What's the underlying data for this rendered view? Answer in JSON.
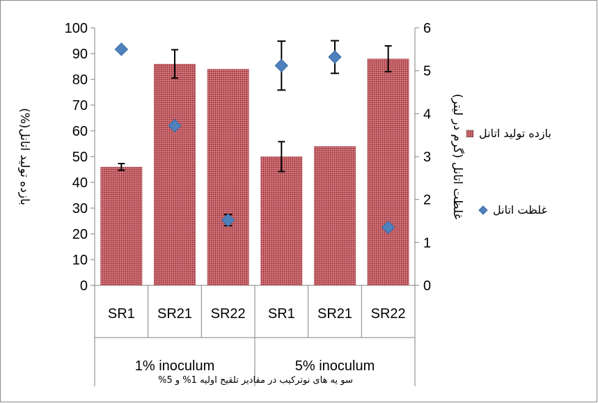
{
  "chart_data": {
    "type": "bar",
    "groups": [
      "1% inoculum",
      "5% inoculum"
    ],
    "categories": [
      "SR1",
      "SR21",
      "SR22",
      "SR1",
      "SR21",
      "SR22"
    ],
    "caption": "سو یه های نوترکیب در مقادیر تلقیح اولیه 1% و 5%",
    "y_left": {
      "label": "بازده تولید اتانل(%)",
      "ylim": [
        0,
        100
      ],
      "ticks": [
        0,
        10,
        20,
        30,
        40,
        50,
        60,
        70,
        80,
        90,
        100
      ]
    },
    "y_right": {
      "label": "غلظت اتانل (گرم در لیتر)",
      "ylim": [
        0,
        6
      ],
      "ticks": [
        0,
        1,
        2,
        3,
        4,
        5,
        6
      ]
    },
    "series": [
      {
        "name": "بازده تولید اتانل",
        "type": "bar",
        "axis": "left",
        "values": [
          46,
          86,
          84,
          50,
          54,
          88
        ],
        "error": [
          1.3,
          5.5,
          null,
          5.8,
          null,
          5
        ]
      },
      {
        "name": "غلظت اتانل",
        "type": "scatter",
        "axis": "right",
        "values": [
          5.5,
          3.72,
          1.52,
          5.12,
          5.32,
          1.35
        ],
        "error": [
          null,
          null,
          0.13,
          0.57,
          0.38,
          null
        ]
      }
    ],
    "legend_position": "right",
    "colors": {
      "bar": "#b8434a",
      "bar_dot": "#7a1f26",
      "marker": "#4f81bd",
      "marker_edge": "#3a6aa4",
      "axis": "#808080"
    },
    "grid": false
  }
}
